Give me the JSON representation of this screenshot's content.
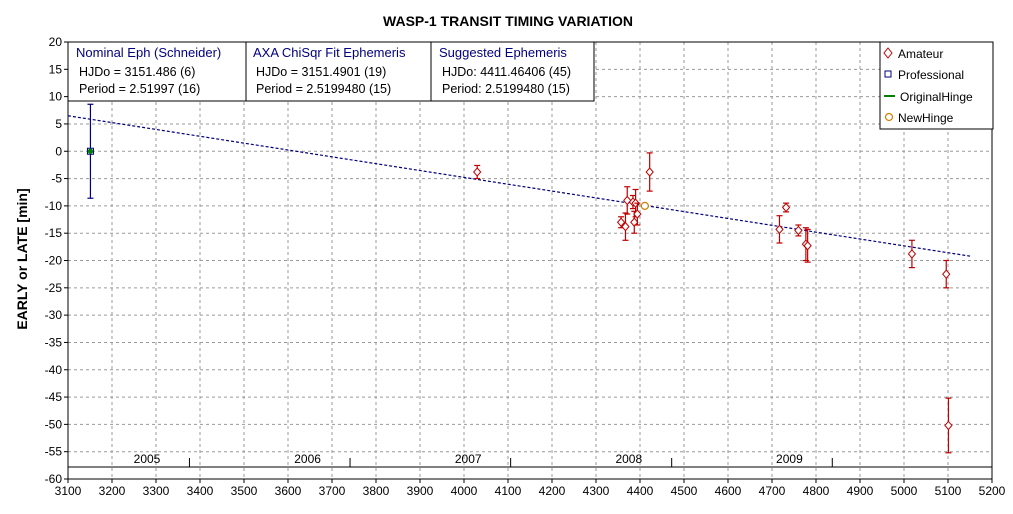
{
  "chart_data": {
    "type": "scatter",
    "title": "WASP-1 TRANSIT TIMING VARIATION",
    "ylabel": "EARLY or LATE [min]",
    "xlabel": "",
    "xlim": [
      3100,
      5200
    ],
    "ylim": [
      -60,
      20
    ],
    "x_ticks": [
      3100,
      3200,
      3300,
      3400,
      3500,
      3600,
      3700,
      3800,
      3900,
      4000,
      4100,
      4200,
      4300,
      4400,
      4500,
      4600,
      4700,
      4800,
      4900,
      5000,
      5100,
      5200
    ],
    "y_ticks": [
      20,
      15,
      10,
      5,
      0,
      -5,
      -10,
      -15,
      -20,
      -25,
      -30,
      -35,
      -40,
      -45,
      -50,
      -55,
      -60
    ],
    "grid": true,
    "legend_position": "top-right",
    "legend": [
      {
        "label": "Amateur",
        "marker": "diamond",
        "color": "#c00000"
      },
      {
        "label": "Professional",
        "marker": "square",
        "color": "#000080"
      },
      {
        "label": "OriginalHinge",
        "marker": "line",
        "color": "#008000"
      },
      {
        "label": "NewHinge",
        "marker": "circle",
        "color": "#d08000"
      }
    ],
    "year_labels": [
      {
        "label": "2005",
        "x": 3200
      },
      {
        "label": "2006",
        "x": 3565
      },
      {
        "label": "2007",
        "x": 3930
      },
      {
        "label": "2008",
        "x": 4295
      },
      {
        "label": "2009",
        "x": 4660
      }
    ],
    "year_boundaries": [
      3376,
      3741,
      4106,
      4472,
      4837
    ],
    "ephemeris_boxes": [
      {
        "heading": "Nominal Eph (Schneider)",
        "line1": "HJDo = 3151.486 (6)",
        "line2": "Period = 2.51997 (16)"
      },
      {
        "heading": "AXA ChiSqr Fit Ephemeris",
        "line1": "HJDo = 3151.4901 (19)",
        "line2": "Period = 2.5199480 (15)"
      },
      {
        "heading": "Suggested Ephemeris",
        "line1": "HJDo:  4411.46406 (45)",
        "line2": "Period: 2.5199480 (15)"
      }
    ],
    "fit_line": {
      "x": [
        3100,
        5150
      ],
      "y": [
        6.5,
        -19.2
      ],
      "color": "#000080"
    },
    "series": [
      {
        "name": "Amateur",
        "color": "#c00000",
        "points": [
          {
            "x": 4030,
            "y": -3.8,
            "err": 1.2
          },
          {
            "x": 4357,
            "y": -13.0,
            "err": 1.0
          },
          {
            "x": 4367,
            "y": -13.8,
            "err": 2.5
          },
          {
            "x": 4371,
            "y": -9.0,
            "err": 2.5
          },
          {
            "x": 4384,
            "y": -9.3,
            "err": 1.2
          },
          {
            "x": 4387,
            "y": -13.0,
            "err": 2.0
          },
          {
            "x": 4390,
            "y": -9.5,
            "err": 2.5
          },
          {
            "x": 4394,
            "y": -11.5,
            "err": 2.0
          },
          {
            "x": 4422,
            "y": -3.8,
            "err": 3.5
          },
          {
            "x": 4717,
            "y": -14.3,
            "err": 2.5
          },
          {
            "x": 4732,
            "y": -10.3,
            "err": 0.8
          },
          {
            "x": 4760,
            "y": -14.5,
            "err": 1.0
          },
          {
            "x": 4777,
            "y": -17.0,
            "err": 3.0
          },
          {
            "x": 4781,
            "y": -17.3,
            "err": 3.0
          },
          {
            "x": 5018,
            "y": -18.8,
            "err": 2.5
          },
          {
            "x": 5096,
            "y": -22.5,
            "err": 2.5
          },
          {
            "x": 5101,
            "y": -50.2,
            "err": 5.0
          }
        ]
      },
      {
        "name": "Professional",
        "color": "#000080",
        "points": [
          {
            "x": 3151,
            "y": 0,
            "err": 8.6
          }
        ]
      },
      {
        "name": "OriginalHinge",
        "color": "#008000",
        "points": [
          {
            "x": 3151,
            "y": 0
          }
        ]
      },
      {
        "name": "NewHinge",
        "color": "#d08000",
        "points": [
          {
            "x": 4411,
            "y": -10.0
          }
        ]
      }
    ]
  }
}
